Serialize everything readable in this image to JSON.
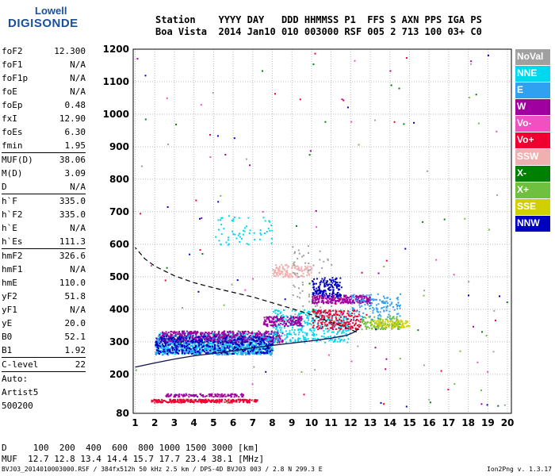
{
  "logo": {
    "top": "Lowell",
    "main": "DIGISONDE"
  },
  "header": {
    "line1": "Station    YYYY DAY   DDD HHMMSS P1  FFS S AXN PPS IGA PS",
    "line2": "Boa Vista  2014 Jan10 010 003000 RSF 005 2 713 100 03+ C0"
  },
  "params": [
    {
      "label": "foF2",
      "value": "12.300"
    },
    {
      "label": "foF1",
      "value": "N/A"
    },
    {
      "label": "foF1p",
      "value": "N/A"
    },
    {
      "label": "foE",
      "value": "N/A"
    },
    {
      "label": "foEp",
      "value": "0.48"
    },
    {
      "label": "fxI",
      "value": "12.90"
    },
    {
      "label": "foEs",
      "value": "6.30"
    },
    {
      "label": "fmin",
      "value": "1.95"
    },
    {
      "label": "MUF(D)",
      "value": "38.06"
    },
    {
      "label": "M(D)",
      "value": "3.09"
    },
    {
      "label": "D",
      "value": "N/A"
    },
    {
      "label": "h`F",
      "value": "335.0"
    },
    {
      "label": "h`F2",
      "value": "335.0"
    },
    {
      "label": "h`E",
      "value": "N/A"
    },
    {
      "label": "h`Es",
      "value": "111.3"
    },
    {
      "label": "hmF2",
      "value": "326.6"
    },
    {
      "label": "hmF1",
      "value": "N/A"
    },
    {
      "label": "hmE",
      "value": "110.0"
    },
    {
      "label": "yF2",
      "value": "51.8"
    },
    {
      "label": "yF1",
      "value": "N/A"
    },
    {
      "label": "yE",
      "value": "20.0"
    },
    {
      "label": "B0",
      "value": "52.1"
    },
    {
      "label": "B1",
      "value": "1.92"
    },
    {
      "label": "C-level",
      "value": "22"
    }
  ],
  "auto": [
    "Auto:",
    "Artist5",
    "500200"
  ],
  "legend": [
    {
      "label": "NoVal",
      "color": "#a0a0a0"
    },
    {
      "label": "NNE",
      "color": "#00d8f0"
    },
    {
      "label": "E",
      "color": "#30a0f0"
    },
    {
      "label": "W",
      "color": "#a000a0"
    },
    {
      "label": "Vo-",
      "color": "#f050c0"
    },
    {
      "label": "Vo+",
      "color": "#f00030"
    },
    {
      "label": "SSW",
      "color": "#f0b0b0"
    },
    {
      "label": "X-",
      "color": "#008000"
    },
    {
      "label": "X+",
      "color": "#70c040"
    },
    {
      "label": "SSE",
      "color": "#d0d000"
    },
    {
      "label": "NNW",
      "color": "#0000c0"
    }
  ],
  "footer": {
    "line1": "D     100  200  400  600  800 1000 1500 3000 [km]",
    "line2": "MUF  12.7 12.8 13.4 14.4 15.7 17.7 23.4 38.1 [MHz]"
  },
  "fileinfo": "BVJ03_2014010003000.RSF / 384fx512h 50 kHz 2.5 km / DPS-4D BVJ03 003 / 2.8 N 299.3 E",
  "version": "Ion2Png v. 1.3.17",
  "chart_data": {
    "type": "scatter",
    "x_ticks": [
      1,
      2,
      3,
      4,
      5,
      6,
      7,
      8,
      9,
      10,
      11,
      12,
      13,
      14,
      15,
      16,
      17,
      18,
      19,
      20
    ],
    "y_ticks": [
      80,
      200,
      300,
      400,
      500,
      600,
      700,
      800,
      900,
      1000,
      1100,
      1200
    ],
    "xlim": [
      0.9,
      20.2
    ],
    "ylim": [
      80,
      1200
    ],
    "grid": true,
    "trace_curve": [
      [
        1.0,
        222
      ],
      [
        2.0,
        235
      ],
      [
        3.0,
        247
      ],
      [
        4.0,
        257
      ],
      [
        5.0,
        264
      ],
      [
        6.0,
        272
      ],
      [
        7.0,
        281
      ],
      [
        8.0,
        289
      ],
      [
        9.0,
        296
      ],
      [
        10.0,
        303
      ],
      [
        11.0,
        311
      ],
      [
        11.8,
        320
      ],
      [
        12.2,
        330
      ],
      [
        12.4,
        340
      ]
    ],
    "profile_curve": [
      [
        12.3,
        330
      ],
      [
        12.0,
        338
      ],
      [
        11.0,
        360
      ],
      [
        10.0,
        383
      ],
      [
        9.0,
        402
      ],
      [
        8.0,
        420
      ],
      [
        7.0,
        438
      ],
      [
        6.0,
        452
      ],
      [
        5.0,
        466
      ],
      [
        4.0,
        482
      ],
      [
        3.0,
        503
      ],
      [
        2.0,
        533
      ],
      [
        1.5,
        555
      ],
      [
        1.0,
        590
      ]
    ],
    "echo_regions": [
      {
        "series": "NNE",
        "x": [
          2.0,
          8.0
        ],
        "y": [
          265,
          330
        ],
        "n": 700
      },
      {
        "series": "E",
        "x": [
          2.0,
          8.0
        ],
        "y": [
          262,
          320
        ],
        "n": 600
      },
      {
        "series": "W",
        "x": [
          2.2,
          8.5
        ],
        "y": [
          300,
          335
        ],
        "n": 500
      },
      {
        "series": "NNW",
        "x": [
          2.0,
          8.0
        ],
        "y": [
          265,
          320
        ],
        "n": 400
      },
      {
        "series": "NNE",
        "x": [
          8.0,
          12.0
        ],
        "y": [
          300,
          400
        ],
        "n": 400
      },
      {
        "series": "W",
        "x": [
          10.0,
          13.0
        ],
        "y": [
          420,
          445
        ],
        "n": 250
      },
      {
        "series": "W",
        "x": [
          7.5,
          9.5
        ],
        "y": [
          350,
          380
        ],
        "n": 150
      },
      {
        "series": "Vo+",
        "x": [
          10.0,
          12.5
        ],
        "y": [
          340,
          400
        ],
        "n": 200
      },
      {
        "series": "SSW",
        "x": [
          8.0,
          10.0
        ],
        "y": [
          500,
          540
        ],
        "n": 120
      },
      {
        "series": "NNW",
        "x": [
          10.0,
          11.5
        ],
        "y": [
          440,
          500
        ],
        "n": 150
      },
      {
        "series": "X+",
        "x": [
          12.5,
          14.5
        ],
        "y": [
          340,
          380
        ],
        "n": 120
      },
      {
        "series": "SSE",
        "x": [
          13.0,
          15.0
        ],
        "y": [
          345,
          370
        ],
        "n": 80
      },
      {
        "series": "E",
        "x": [
          12.0,
          14.5
        ],
        "y": [
          370,
          450
        ],
        "n": 120
      },
      {
        "series": "Vo+",
        "x": [
          1.8,
          7.2
        ],
        "y": [
          115,
          125
        ],
        "n": 250
      },
      {
        "series": "W",
        "x": [
          2.5,
          6.5
        ],
        "y": [
          133,
          142
        ],
        "n": 120
      },
      {
        "series": "NNE",
        "x": [
          5.0,
          8.0
        ],
        "y": [
          600,
          690
        ],
        "n": 60
      },
      {
        "series": "NoVal",
        "x": [
          9.0,
          11.0
        ],
        "y": [
          380,
          600
        ],
        "n": 60
      }
    ]
  }
}
